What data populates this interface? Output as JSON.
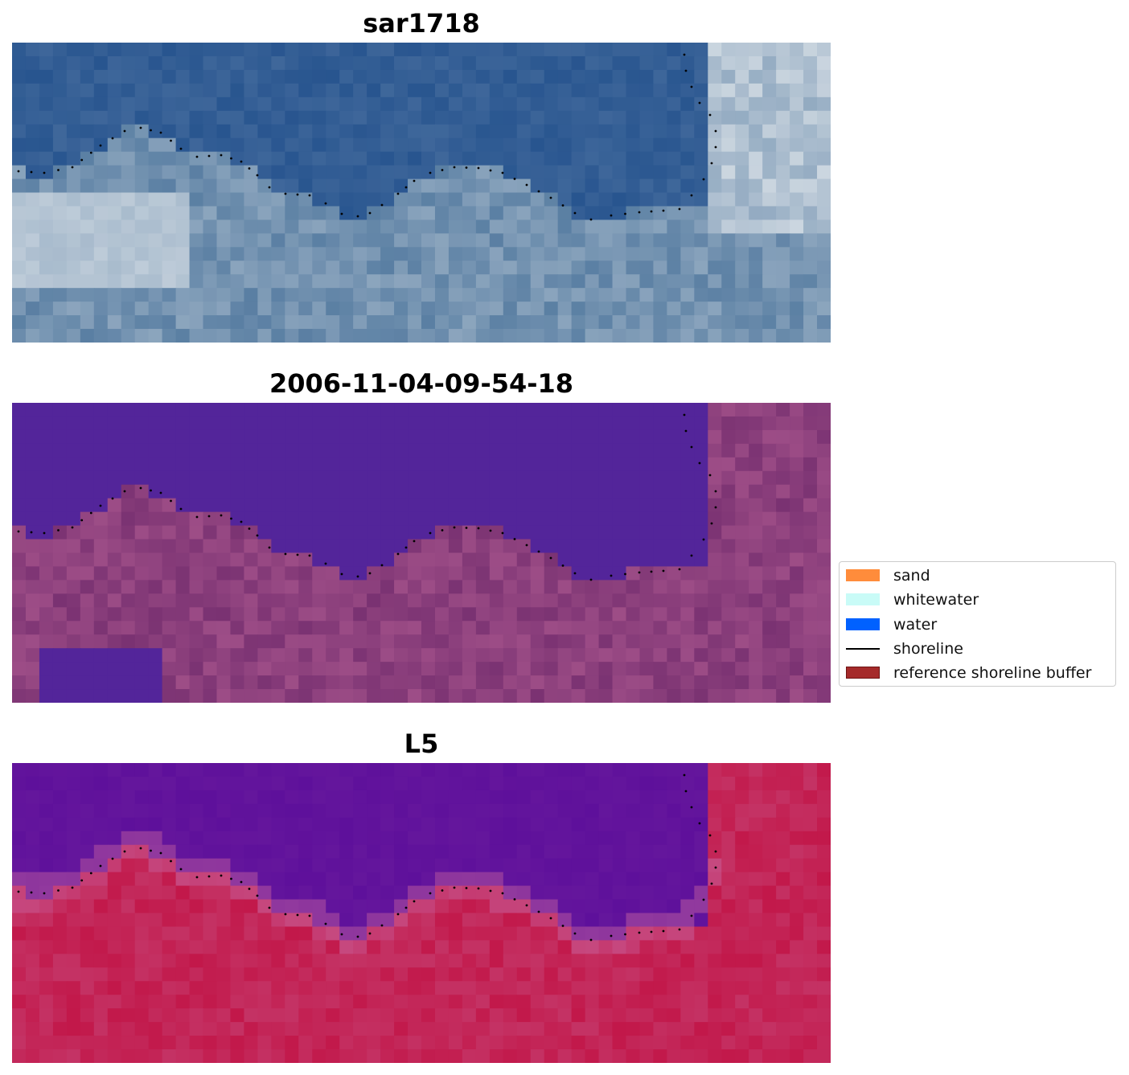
{
  "panels": [
    {
      "title": "sar1718",
      "kind": "rgb"
    },
    {
      "title": "2006-11-04-09-54-18",
      "kind": "classified"
    },
    {
      "title": "L5",
      "kind": "ndwi"
    }
  ],
  "legend": {
    "items": [
      {
        "label": "sand",
        "color": "#ff8c3b",
        "type": "patch"
      },
      {
        "label": "whitewater",
        "color": "#c9fbf7",
        "type": "patch"
      },
      {
        "label": "water",
        "color": "#0061ff",
        "type": "patch"
      },
      {
        "label": "shoreline",
        "color": "#000000",
        "type": "line"
      },
      {
        "label": "reference shoreline buffer",
        "color": "#a52a2a",
        "type": "patch"
      }
    ]
  },
  "colors": {
    "rgb_water": "#28558f",
    "rgb_land": "#5a7fa3",
    "rgb_bright": "#e8ecef",
    "class_water": "#53259a",
    "class_land": "#7a3272",
    "ndwi_water": "#5e109b",
    "ndwi_land": "#c2184a",
    "shoreline": "#000000"
  }
}
